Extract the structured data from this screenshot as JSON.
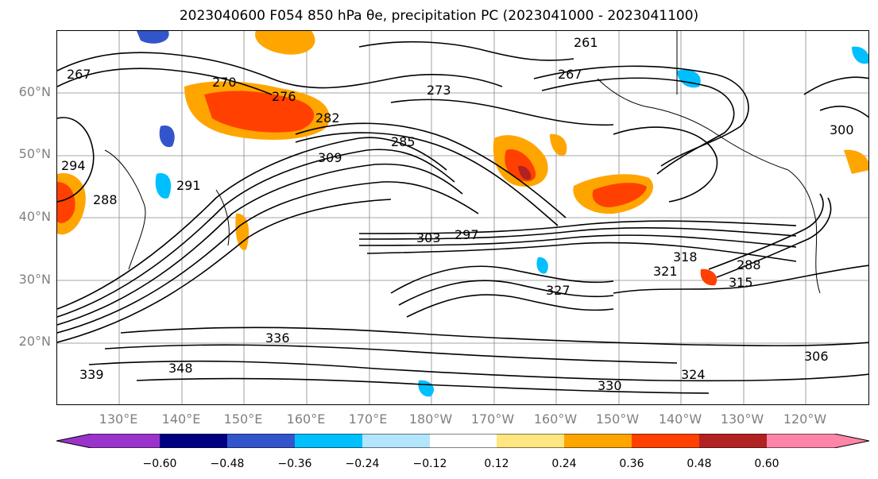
{
  "title": "2023040600 F054 850 hPa θe, precipitation PC (2023041000 - 2023041100)",
  "map": {
    "lat_labels": [
      "60°N",
      "50°N",
      "40°N",
      "30°N",
      "20°N"
    ],
    "lon_labels": [
      "130°E",
      "140°E",
      "150°E",
      "160°E",
      "170°E",
      "180°W",
      "170°W",
      "160°W",
      "150°W",
      "140°W",
      "130°W",
      "120°W"
    ],
    "contour_labels": [
      "267",
      "270",
      "273",
      "276",
      "282",
      "285",
      "309",
      "303",
      "297",
      "318",
      "321",
      "315",
      "327",
      "330",
      "336",
      "324",
      "306",
      "339",
      "348",
      "288",
      "291",
      "294",
      "300",
      "288",
      "261",
      "267"
    ]
  },
  "colorbar": {
    "colors": [
      "#9933cc",
      "#000080",
      "#3355cc",
      "#00bfff",
      "#b3e5fc",
      "#ffffff",
      "#ffe680",
      "#ffa500",
      "#ff4000",
      "#b22222",
      "#ff85a8"
    ],
    "tick_labels": [
      "−0.60",
      "−0.48",
      "−0.36",
      "−0.24",
      "−0.12",
      "0.12",
      "0.24",
      "0.36",
      "0.48",
      "0.60"
    ]
  }
}
